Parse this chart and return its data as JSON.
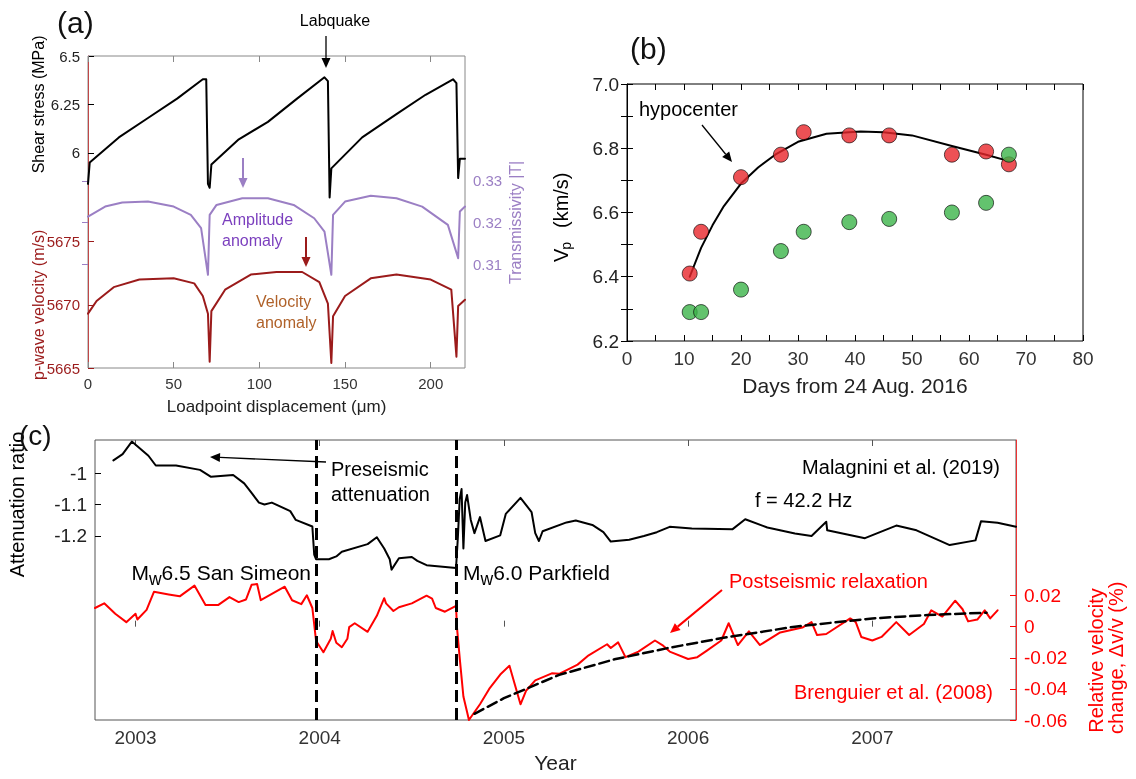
{
  "chart_data": [
    {
      "type": "line",
      "title": "(a)",
      "xlabel": "Loadpoint displacement (μm)",
      "ylabel": "Shear stress (MPa)",
      "y2label": "Transmissivity |T|",
      "y3label": "p-wave velocity (m/s)",
      "xlim": [
        0,
        220
      ],
      "xticks": [
        0,
        50,
        100,
        150,
        200
      ],
      "ylim": [
        4.89,
        6.5
      ],
      "yticks": [
        6,
        6.25,
        6.5
      ],
      "y2lim": [
        0.285,
        0.36
      ],
      "y2ticks": [
        0.31,
        0.32,
        0.33
      ],
      "y3lim": [
        5665,
        5689.7
      ],
      "y3ticks": [
        5665,
        5670,
        5675
      ],
      "marker": "none",
      "line_style": "solid",
      "legend": false,
      "grid": false,
      "annotations": [
        "Labquake",
        "Amplitude anomaly",
        "Velocity anomaly"
      ],
      "series": [
        {
          "color": "#000000",
          "x": [
            0,
            1,
            18,
            35,
            52,
            67,
            69,
            70,
            71,
            72,
            88,
            105,
            122,
            138,
            140,
            141,
            142,
            160,
            180,
            197,
            213,
            215,
            216,
            217,
            220
          ],
          "values": [
            5.84,
            5.95,
            6.08,
            6.18,
            6.28,
            6.38,
            6.38,
            5.84,
            5.82,
            5.94,
            6.07,
            6.16,
            6.28,
            6.39,
            6.37,
            5.77,
            5.92,
            6.08,
            6.2,
            6.3,
            6.38,
            6.36,
            5.87,
            5.97,
            5.97
          ]
        },
        {
          "color": "#9b7fc4",
          "axis": "y2",
          "x": [
            0,
            10,
            20,
            35,
            50,
            60,
            66,
            70,
            71,
            75,
            90,
            105,
            120,
            132,
            138,
            142,
            143,
            150,
            165,
            180,
            195,
            210,
            216,
            217,
            220
          ],
          "values": [
            0.3214,
            0.3238,
            0.3248,
            0.325,
            0.3238,
            0.3218,
            0.3186,
            0.3074,
            0.3218,
            0.3242,
            0.3258,
            0.3258,
            0.3242,
            0.321,
            0.3178,
            0.3074,
            0.3218,
            0.325,
            0.3264,
            0.3258,
            0.3238,
            0.3194,
            0.3114,
            0.3226,
            0.3238
          ]
        },
        {
          "color": "#9b1b1b",
          "axis": "y3",
          "x": [
            0,
            5,
            15,
            30,
            50,
            62,
            67,
            70,
            71,
            72,
            80,
            95,
            110,
            125,
            135,
            140,
            142,
            143,
            150,
            165,
            180,
            200,
            212,
            215,
            216,
            220
          ],
          "values": [
            5669.3,
            5670.3,
            5671.4,
            5672,
            5672.1,
            5671.7,
            5670.7,
            5669.3,
            5665.5,
            5669.5,
            5671.2,
            5672.4,
            5672.6,
            5672.6,
            5671.8,
            5670.1,
            5665.4,
            5669.1,
            5670.7,
            5672.1,
            5672.4,
            5672,
            5671.2,
            5665.9,
            5669.9,
            5670.4
          ]
        }
      ]
    },
    {
      "type": "scatter",
      "title": "(b)",
      "xlabel": "Days from 24 Aug. 2016",
      "ylabel": "V$_{p}$ (km/s)",
      "xlim": [
        0,
        80
      ],
      "xticks": [
        0,
        {
          "value": 5,
          "label": null
        },
        10,
        {
          "value": 15,
          "label": null
        },
        20,
        {
          "value": 25,
          "label": null
        },
        30,
        {
          "value": 35,
          "label": null
        },
        40,
        {
          "value": 45,
          "label": null
        },
        50,
        {
          "value": 55,
          "label": null
        },
        60,
        {
          "value": 65,
          "label": null
        },
        70,
        {
          "value": 75,
          "label": null
        },
        80
      ],
      "ylim": [
        6.2,
        7.0
      ],
      "yticks": [
        6.2,
        {
          "value": 6.3,
          "label": null
        },
        6.4,
        {
          "value": 6.5,
          "label": null
        },
        6.6,
        {
          "value": 6.7,
          "label": null
        },
        6.8,
        {
          "value": 6.9,
          "label": null
        },
        {
          "value": 7,
          "label": "7.0"
        }
      ],
      "marker": "circle",
      "legend": false,
      "grid": false,
      "annotations": [
        "hypocenter"
      ],
      "series": [
        {
          "color": "#e8262a",
          "x": [
            11,
            13,
            20,
            27,
            31,
            39,
            46,
            57,
            63,
            67
          ],
          "values": [
            6.41,
            6.54,
            6.71,
            6.78,
            6.85,
            6.84,
            6.84,
            6.78,
            6.79,
            6.75
          ]
        },
        {
          "color": "#3cb44a",
          "x": [
            11,
            13,
            20,
            27,
            31,
            39,
            46,
            57,
            63,
            67
          ],
          "values": [
            6.29,
            6.29,
            6.36,
            6.48,
            6.54,
            6.57,
            6.58,
            6.6,
            6.63,
            6.78
          ]
        },
        {
          "type": "line",
          "color": "#000000",
          "marker": "none",
          "x": [
            11,
            13,
            15,
            17,
            20,
            23,
            26,
            30,
            35,
            41,
            45,
            50,
            57,
            63,
            67
          ],
          "values": [
            6.4,
            6.49,
            6.56,
            6.62,
            6.69,
            6.74,
            6.78,
            6.82,
            6.845,
            6.852,
            6.85,
            6.84,
            6.807,
            6.78,
            6.76
          ]
        }
      ]
    },
    {
      "type": "line",
      "title": "(c)",
      "xlabel": "Year",
      "ylabel": "Attenuation ratio",
      "y2label": "Relative velocity change, Δv/v (%)",
      "xlim": [
        2002.78,
        2007.78
      ],
      "xticks": [
        2003,
        2004,
        2005,
        2006,
        2007
      ],
      "ylim": [
        -1.785,
        -0.895
      ],
      "yticks": [
        -1.2,
        -1.1,
        -1
      ],
      "y2lim": [
        -0.06,
        0.12
      ],
      "y2ticks": [
        -0.06,
        -0.04,
        -0.02,
        0,
        0.02
      ],
      "marker": "none",
      "legend": false,
      "grid": false,
      "ref_lines": [
        {
          "axis": "x",
          "value": 2003.98,
          "label": "M$_{w}$6.5 San Simeon",
          "color": "#000000",
          "line_style": "dashed"
        },
        {
          "axis": "x",
          "value": 2004.74,
          "label": "M$_{w}$6.0 Parkfield",
          "color": "#000000",
          "line_style": "dashed"
        }
      ],
      "annotations": [
        "Preseismic attenuation",
        "Postseismic relaxation",
        "f = 42.2 Hz"
      ],
      "series": [
        {
          "name": "Malagnini et al. (2019)",
          "color": "#000000",
          "line_style": "solid",
          "x": [
            2002.88,
            2002.93,
            2002.98,
            2003.07,
            2003.11,
            2003.22,
            2003.35,
            2003.41,
            2003.53,
            2003.59,
            2003.63,
            2003.67,
            2003.7,
            2003.74,
            2003.84,
            2003.87,
            2003.96,
            2003.97,
            2003.98,
            2004.05,
            2004.09,
            2004.12,
            2004.26,
            2004.31,
            2004.35,
            2004.38,
            2004.39,
            2004.43,
            2004.5,
            2004.53,
            2004.58,
            2004.74,
            2004.75,
            2004.76,
            2004.77,
            2004.78,
            2004.79,
            2004.8,
            2004.82,
            2004.84,
            2004.87,
            2004.9,
            2004.98,
            2005.01,
            2005.09,
            2005.15,
            2005.17,
            2005.19,
            2005.21,
            2005.34,
            2005.39,
            2005.48,
            2005.54,
            2005.58,
            2005.68,
            2005.76,
            2005.83,
            2005.9,
            2006.02,
            2006.24,
            2006.31,
            2006.43,
            2006.58,
            2006.67,
            2006.75,
            2006.755,
            2006.96,
            2007.13,
            2007.24,
            2007.42,
            2007.56,
            2007.59,
            2007.68,
            2007.78
          ],
          "values": [
            -0.96,
            -0.94,
            -0.9,
            -0.945,
            -0.976,
            -0.976,
            -0.99,
            -1.012,
            -1.006,
            -1.033,
            -1.063,
            -1.094,
            -1.1,
            -1.094,
            -1.121,
            -1.149,
            -1.17,
            -1.259,
            -1.274,
            -1.274,
            -1.265,
            -1.25,
            -1.226,
            -1.204,
            -1.24,
            -1.274,
            -1.307,
            -1.271,
            -1.267,
            -1.279,
            -1.293,
            -1.302,
            -1.204,
            -1.082,
            -1.051,
            -1.24,
            -1.094,
            -1.07,
            -1.149,
            -1.191,
            -1.14,
            -1.216,
            -1.198,
            -1.13,
            -1.079,
            -1.124,
            -1.191,
            -1.216,
            -1.185,
            -1.157,
            -1.151,
            -1.165,
            -1.188,
            -1.218,
            -1.212,
            -1.2,
            -1.188,
            -1.171,
            -1.176,
            -1.179,
            -1.147,
            -1.173,
            -1.192,
            -1.2,
            -1.155,
            -1.182,
            -1.207,
            -1.167,
            -1.182,
            -1.229,
            -1.214,
            -1.153,
            -1.158,
            -1.171
          ]
        },
        {
          "name": "Brenguier et al. (2008)",
          "color": "#ff0000",
          "axis": "y2",
          "line_style": "solid",
          "x": [
            2002.78,
            2002.83,
            2002.89,
            2002.95,
            2003,
            2003.01,
            2003.06,
            2003.1,
            2003.18,
            2003.24,
            2003.32,
            2003.38,
            2003.45,
            2003.51,
            2003.56,
            2003.6,
            2003.63,
            2003.66,
            2003.68,
            2003.81,
            2003.85,
            2003.9,
            2003.93,
            2003.96,
            2003.98,
            2004.02,
            2004.06,
            2004.07,
            2004.09,
            2004.12,
            2004.15,
            2004.16,
            2004.19,
            2004.26,
            2004.31,
            2004.35,
            2004.36,
            2004.4,
            2004.43,
            2004.5,
            2004.58,
            2004.61,
            2004.63,
            2004.68,
            2004.74,
            2004.745,
            2004.76,
            2004.78,
            2004.8,
            2004.81,
            2004.87,
            2004.92,
            2004.98,
            2005.03,
            2005.06,
            2005.09,
            2005.12,
            2005.17,
            2005.26,
            2005.3,
            2005.4,
            2005.46,
            2005.56,
            2005.58,
            2005.62,
            2005.66,
            2005.73,
            2005.82,
            2005.86,
            2005.9,
            2006,
            2006.05,
            2006.1,
            2006.18,
            2006.22,
            2006.27,
            2006.33,
            2006.39,
            2006.5,
            2006.62,
            2006.67,
            2006.7,
            2006.75,
            2006.88,
            2006.91,
            2006.94,
            2007,
            2007.05,
            2007.13,
            2007.2,
            2007.28,
            2007.32,
            2007.38,
            2007.45,
            2007.49,
            2007.52,
            2007.57,
            2007.61,
            2007.64,
            2007.68
          ],
          "values": [
            0.012,
            0.015,
            0.0083,
            0.0029,
            0.0083,
            0.0046,
            0.0108,
            0.0224,
            0.0207,
            0.0195,
            0.0264,
            0.014,
            0.014,
            0.019,
            0.0158,
            0.0175,
            0.0269,
            0.0274,
            0.017,
            0.0257,
            0.017,
            0.0145,
            0.0202,
            0.012,
            -0.009,
            -0.0164,
            -0.0078,
            -0.0028,
            -0.0103,
            -0.0132,
            -0.0078,
            -0.0003,
            0.0022,
            -0.0033,
            0.007,
            0.0183,
            0.015,
            0.0101,
            0.0125,
            0.015,
            0.0199,
            0.018,
            0.012,
            0.0096,
            0.0133,
            -0.0003,
            -0.0202,
            -0.0449,
            -0.0548,
            -0.06,
            -0.0499,
            -0.04,
            -0.0308,
            -0.0251,
            -0.0375,
            -0.0499,
            -0.0412,
            -0.0345,
            -0.03,
            -0.0303,
            -0.0244,
            -0.0184,
            -0.0113,
            -0.0137,
            -0.0101,
            -0.0196,
            -0.016,
            -0.0089,
            -0.0118,
            -0.016,
            -0.0208,
            -0.0196,
            -0.0156,
            -0.0089,
            0.0022,
            -0.0118,
            -0.003,
            -0.0118,
            -0.0037,
            -0.0006,
            0.0029,
            -0.0054,
            -0.0047,
            0.0053,
            0.0029,
            -0.0066,
            -0.0089,
            -0.0066,
            0.0029,
            -0.0054,
            0.0017,
            0.0105,
            0.0065,
            0.0167,
            0.0112,
            0.0034,
            0.0046,
            0.0105,
            0.0053,
            0.0105
          ]
        },
        {
          "color": "#000000",
          "axis": "y2",
          "line_style": "dashed",
          "x": [
            2004.84,
            2005,
            2005.3,
            2005.6,
            2005.9,
            2006.2,
            2006.58,
            2007,
            2007.3,
            2007.62
          ],
          "values": [
            -0.056,
            -0.046,
            -0.031,
            -0.021,
            -0.0135,
            -0.007,
            0,
            0.0053,
            0.0075,
            0.009
          ]
        }
      ]
    }
  ]
}
